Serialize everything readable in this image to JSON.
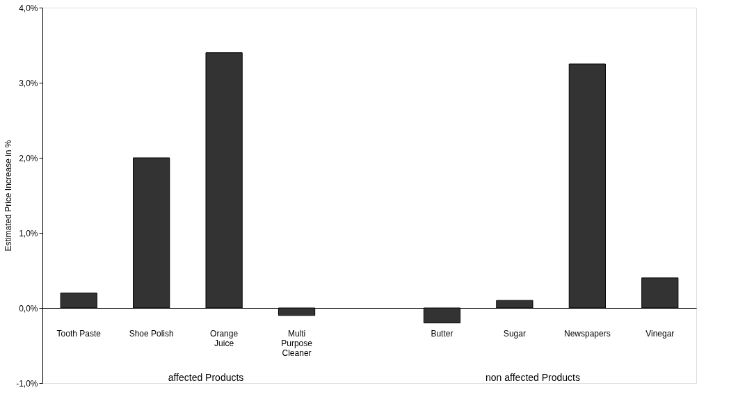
{
  "chart_data": {
    "type": "bar",
    "ylabel": "Estimated Price Increase in %",
    "categories": [
      "Tooth Paste",
      "Shoe Polish",
      "Orange Juice",
      "Multi Purpose Cleaner",
      null,
      "Butter",
      "Sugar",
      "Newspapers",
      "Vinegar"
    ],
    "values": [
      0.2,
      2.0,
      3.4,
      -0.1,
      null,
      -0.2,
      0.1,
      3.25,
      0.4
    ],
    "color": "#333333",
    "ylim": [
      -1,
      4
    ],
    "yticks": [
      {
        "value": -1,
        "label": "-1,0%"
      },
      {
        "value": 0,
        "label": "0,0%"
      },
      {
        "value": 1,
        "label": "1,0%"
      },
      {
        "value": 2,
        "label": "2,0%"
      },
      {
        "value": 3,
        "label": "3,0%"
      },
      {
        "value": 4,
        "label": "4,0%"
      }
    ],
    "annotations": [
      "affected Products",
      "non affected Products"
    ],
    "grid": false
  }
}
